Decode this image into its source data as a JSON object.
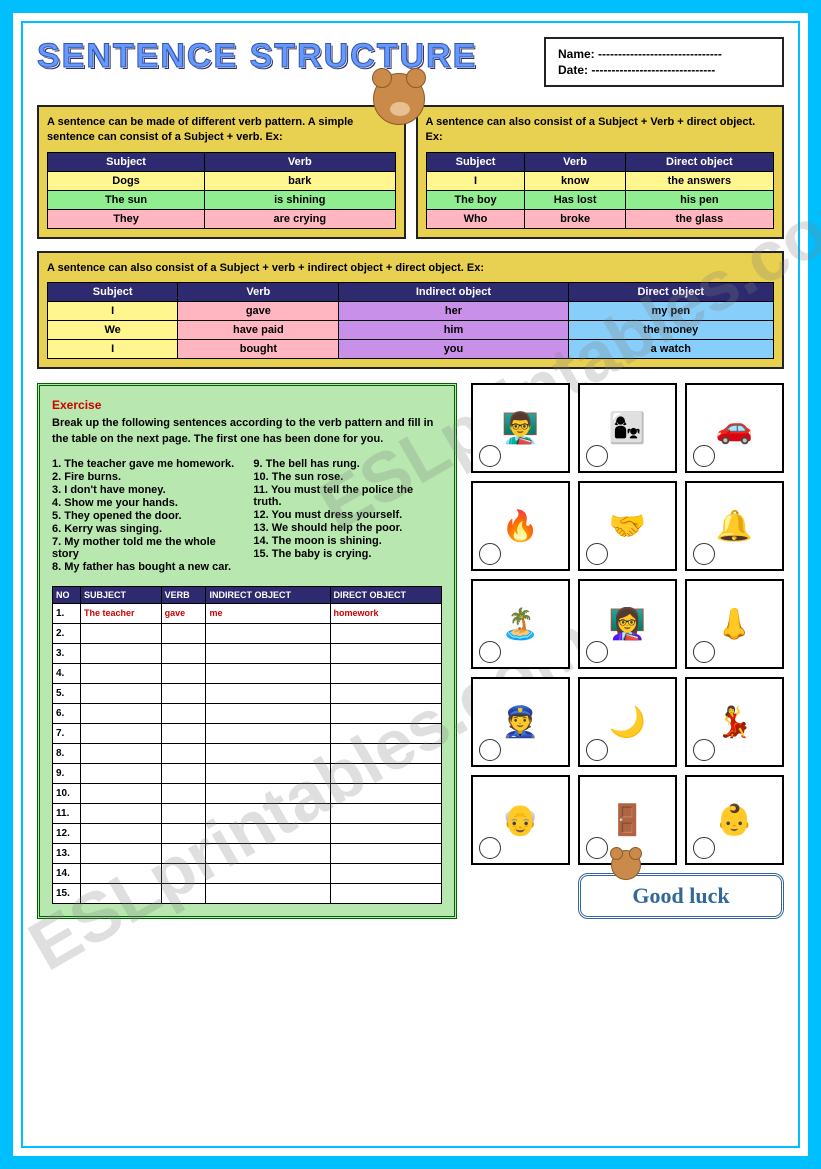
{
  "title": "SENTENCE STRUCTURE",
  "name_label": "Name:",
  "date_label": "Date:",
  "dots": "-------------------------------",
  "box1": {
    "text": "A sentence can be made of different verb pattern. A simple sentence can consist of a Subject + verb. Ex:",
    "headers": [
      "Subject",
      "Verb"
    ],
    "rows": [
      [
        "Dogs",
        "bark"
      ],
      [
        "The sun",
        "is shining"
      ],
      [
        "They",
        "are crying"
      ]
    ],
    "col_colors": [
      "col-yellow",
      "col-green",
      "col-pink"
    ]
  },
  "box2": {
    "text": "A sentence can also consist of a Subject + Verb + direct object. Ex:",
    "headers": [
      "Subject",
      "Verb",
      "Direct object"
    ],
    "rows": [
      [
        "I",
        "know",
        "the answers"
      ],
      [
        "The boy",
        "Has lost",
        "his pen"
      ],
      [
        "Who",
        "broke",
        "the glass"
      ]
    ]
  },
  "box3": {
    "text": "A sentence can also consist of a Subject + verb + indirect object + direct object. Ex:",
    "headers": [
      "Subject",
      "Verb",
      "Indirect object",
      "Direct object"
    ],
    "rows": [
      [
        "I",
        "gave",
        "her",
        "my pen"
      ],
      [
        "We",
        "have paid",
        "him",
        "the money"
      ],
      [
        "I",
        "bought",
        "you",
        "a watch"
      ]
    ]
  },
  "exercise": {
    "heading": "Exercise",
    "desc": "Break up the following sentences according to the verb pattern and fill in the table on the next page. The first one has been done for you.",
    "left": [
      "1. The teacher gave me homework.",
      "2. Fire burns.",
      "3. I don't have money.",
      "4. Show me your hands.",
      "5. They opened the door.",
      "6. Kerry was singing.",
      "7. My mother told me the whole story",
      "8. My father has bought a new car."
    ],
    "right": [
      "9. The bell has rung.",
      "10. The sun rose.",
      "11. You must tell the police the truth.",
      "12. You must dress yourself.",
      "13. We should help the poor.",
      "14. The moon is shining.",
      "15. The baby is crying."
    ],
    "ans_headers": [
      "NO",
      "SUBJECT",
      "VERB",
      "INDIRECT OBJECT",
      "DIRECT OBJECT"
    ],
    "first_row": [
      "1.",
      "The teacher",
      "gave",
      "me",
      "homework"
    ],
    "row_count": 15
  },
  "pics": [
    "👨‍🏫",
    "👩‍👧",
    "🚗",
    "🔥",
    "🤝",
    "🔔",
    "🏝️",
    "👩‍🏫",
    "👃",
    "👮",
    "🌙",
    "💃",
    "👴",
    "🚪",
    "👶"
  ],
  "good_luck": "Good luck",
  "watermark": "ESLprintables.com"
}
